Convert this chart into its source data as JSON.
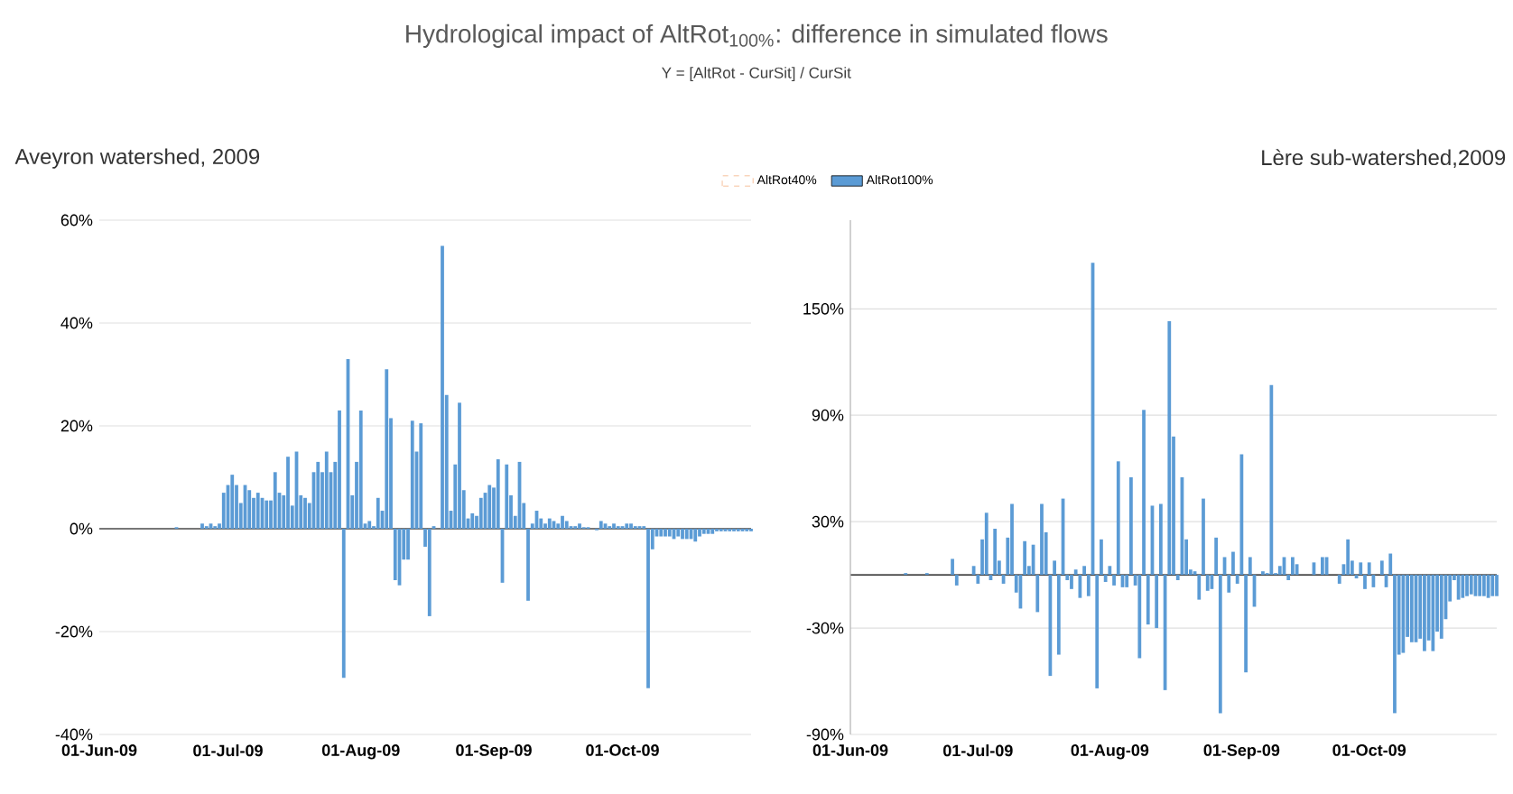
{
  "chart_data": [
    {
      "type": "bar",
      "title": "Hydrological impact of AltRot$_{100%}$: difference in simulated flows",
      "subtitle": "Y = [AltRot - CurSit] / CurSit",
      "annotations": [
        "Aveyron watershed, 2009"
      ],
      "x": [
        "2009-06-01",
        "2009-06-02",
        "2009-06-03",
        "2009-06-04",
        "2009-06-05",
        "2009-06-06",
        "2009-06-07",
        "2009-06-08",
        "2009-06-09",
        "2009-06-10",
        "2009-06-11",
        "2009-06-12",
        "2009-06-13",
        "2009-06-14",
        "2009-06-15",
        "2009-06-16",
        "2009-06-17",
        "2009-06-18",
        "2009-06-19",
        "2009-06-20",
        "2009-06-21",
        "2009-06-22",
        "2009-06-23",
        "2009-06-24",
        "2009-06-25",
        "2009-06-26",
        "2009-06-27",
        "2009-06-28",
        "2009-06-29",
        "2009-06-30",
        "2009-07-01",
        "2009-07-02",
        "2009-07-03",
        "2009-07-04",
        "2009-07-05",
        "2009-07-06",
        "2009-07-07",
        "2009-07-08",
        "2009-07-09",
        "2009-07-10",
        "2009-07-11",
        "2009-07-12",
        "2009-07-13",
        "2009-07-14",
        "2009-07-15",
        "2009-07-16",
        "2009-07-17",
        "2009-07-18",
        "2009-07-19",
        "2009-07-20",
        "2009-07-21",
        "2009-07-22",
        "2009-07-23",
        "2009-07-24",
        "2009-07-25",
        "2009-07-26",
        "2009-07-27",
        "2009-07-28",
        "2009-07-29",
        "2009-07-30",
        "2009-07-31",
        "2009-08-01",
        "2009-08-02",
        "2009-08-03",
        "2009-08-04",
        "2009-08-05",
        "2009-08-06",
        "2009-08-07",
        "2009-08-08",
        "2009-08-09",
        "2009-08-10",
        "2009-08-11",
        "2009-08-12",
        "2009-08-13",
        "2009-08-14",
        "2009-08-15",
        "2009-08-16",
        "2009-08-17",
        "2009-08-18",
        "2009-08-19",
        "2009-08-20",
        "2009-08-21",
        "2009-08-22",
        "2009-08-23",
        "2009-08-24",
        "2009-08-25",
        "2009-08-26",
        "2009-08-27",
        "2009-08-28",
        "2009-08-29",
        "2009-08-30",
        "2009-08-31",
        "2009-09-01",
        "2009-09-02",
        "2009-09-03",
        "2009-09-04",
        "2009-09-05",
        "2009-09-06",
        "2009-09-07",
        "2009-09-08",
        "2009-09-09",
        "2009-09-10",
        "2009-09-11",
        "2009-09-12",
        "2009-09-13",
        "2009-09-14",
        "2009-09-15",
        "2009-09-16",
        "2009-09-17",
        "2009-09-18",
        "2009-09-19",
        "2009-09-20",
        "2009-09-21",
        "2009-09-22",
        "2009-09-23",
        "2009-09-24",
        "2009-09-25",
        "2009-09-26",
        "2009-09-27",
        "2009-09-28",
        "2009-09-29",
        "2009-09-30",
        "2009-10-01",
        "2009-10-02",
        "2009-10-03",
        "2009-10-04",
        "2009-10-05",
        "2009-10-06",
        "2009-10-07",
        "2009-10-08",
        "2009-10-09",
        "2009-10-10",
        "2009-10-11",
        "2009-10-12",
        "2009-10-13",
        "2009-10-14",
        "2009-10-15",
        "2009-10-16",
        "2009-10-17",
        "2009-10-18",
        "2009-10-19",
        "2009-10-20",
        "2009-10-21",
        "2009-10-22",
        "2009-10-23",
        "2009-10-24",
        "2009-10-25",
        "2009-10-26",
        "2009-10-27",
        "2009-10-28",
        "2009-10-29",
        "2009-10-30",
        "2009-10-31"
      ],
      "series": [
        {
          "name": "AltRot40%",
          "color": "#f4b183",
          "line_style": "dashed",
          "values": [
            null,
            null,
            null,
            null,
            null,
            null,
            null,
            null,
            null,
            null,
            null,
            null,
            null,
            null,
            null,
            null,
            null,
            null,
            null,
            null,
            null,
            null,
            null,
            null,
            null,
            null,
            null,
            null,
            null,
            null,
            null,
            null,
            null,
            null,
            null,
            null,
            null,
            null,
            null,
            null,
            null,
            null,
            null,
            null,
            null,
            null,
            null,
            null,
            null,
            null,
            null,
            null,
            null,
            null,
            null,
            null,
            null,
            null,
            null,
            null,
            null,
            null,
            null,
            null,
            null,
            null,
            null,
            null,
            null,
            null,
            null,
            null,
            null,
            null,
            null,
            null,
            null,
            null,
            null,
            null,
            null,
            null,
            null,
            null,
            null,
            null,
            null,
            null,
            null,
            null,
            null,
            null,
            null,
            null,
            null,
            null,
            null,
            null,
            null,
            null,
            null,
            null,
            null,
            null,
            null,
            null,
            null,
            null,
            null,
            null,
            null,
            null,
            null,
            null,
            null,
            null,
            null,
            null,
            null,
            null,
            null,
            null,
            null,
            null,
            null,
            null,
            null,
            null,
            null,
            null,
            null,
            null,
            null,
            null,
            null,
            null,
            null,
            null,
            null,
            null,
            null,
            null,
            null,
            null,
            null,
            null,
            null,
            null,
            null,
            null,
            null,
            null,
            null
          ]
        },
        {
          "name": "AltRot100%",
          "color": "#5b9bd5",
          "values": [
            0,
            0,
            0,
            0,
            0,
            0,
            0,
            0,
            0,
            0,
            0,
            0,
            0,
            0,
            0,
            0,
            0,
            0,
            0.3,
            0,
            0,
            0,
            0,
            0,
            1,
            0.5,
            1,
            0.5,
            1,
            7,
            8.5,
            10.5,
            8.5,
            5,
            8.5,
            7.5,
            6,
            7,
            6,
            5.5,
            5.5,
            11,
            7,
            6.5,
            14,
            4.5,
            15,
            6.5,
            6,
            5,
            11,
            13,
            11,
            15,
            11,
            13,
            23,
            -29,
            33,
            6.5,
            13,
            23,
            1,
            1.5,
            0.5,
            6,
            3.5,
            31,
            21.5,
            -10,
            -11,
            -6,
            -6,
            21,
            15,
            20.5,
            -3.5,
            -17,
            0.5,
            0,
            55,
            26,
            3.5,
            12.5,
            24.5,
            7.5,
            2,
            3,
            2.5,
            6,
            7,
            8.5,
            8,
            13.5,
            -10.5,
            12.5,
            6.5,
            2.5,
            13,
            5,
            -14,
            1,
            3.5,
            2,
            1,
            2,
            1.5,
            1,
            2.5,
            1.5,
            0.5,
            0.5,
            1,
            0.3,
            0.3,
            0,
            -0.3,
            1.5,
            1,
            0.5,
            1,
            0.5,
            0.5,
            1,
            1,
            0.5,
            0.5,
            0.5,
            -31,
            -4,
            -1.5,
            -1.5,
            -1.5,
            -1.5,
            -2,
            -1.5,
            -2,
            -2,
            -2,
            -2.5,
            -1.5,
            -1,
            -1,
            -1,
            -0.5,
            -0.5,
            -0.5,
            -0.5,
            -0.5,
            -0.5,
            -0.5,
            -0.5,
            -0.5
          ]
        }
      ],
      "xlim": [
        "2009-06-01",
        "2009-10-31"
      ],
      "xticks": [
        {
          "value": "2009-06-01",
          "label": "01-Jun-09"
        },
        {
          "value": "2009-07-01",
          "label": "01-Jul-09"
        },
        {
          "value": "2009-08-01",
          "label": "01-Aug-09"
        },
        {
          "value": "2009-09-01",
          "label": "01-Sep-09"
        },
        {
          "value": "2009-10-01",
          "label": "01-Oct-09"
        }
      ],
      "ylim": [
        -40,
        60
      ],
      "yticks": [
        {
          "value": -40,
          "label": "-40%"
        },
        {
          "value": -20,
          "label": "-20%"
        },
        {
          "value": 0,
          "label": "0%"
        },
        {
          "value": 20,
          "label": "20%"
        },
        {
          "value": 40,
          "label": "40%"
        },
        {
          "value": 60,
          "label": "60%"
        }
      ],
      "grid": "y",
      "legend": "top right"
    },
    {
      "type": "bar",
      "annotations": [
        "Lère sub-watershed,2009"
      ],
      "x": [
        "2009-06-01",
        "2009-06-02",
        "2009-06-03",
        "2009-06-04",
        "2009-06-05",
        "2009-06-06",
        "2009-06-07",
        "2009-06-08",
        "2009-06-09",
        "2009-06-10",
        "2009-06-11",
        "2009-06-12",
        "2009-06-13",
        "2009-06-14",
        "2009-06-15",
        "2009-06-16",
        "2009-06-17",
        "2009-06-18",
        "2009-06-19",
        "2009-06-20",
        "2009-06-21",
        "2009-06-22",
        "2009-06-23",
        "2009-06-24",
        "2009-06-25",
        "2009-06-26",
        "2009-06-27",
        "2009-06-28",
        "2009-06-29",
        "2009-06-30",
        "2009-07-01",
        "2009-07-02",
        "2009-07-03",
        "2009-07-04",
        "2009-07-05",
        "2009-07-06",
        "2009-07-07",
        "2009-07-08",
        "2009-07-09",
        "2009-07-10",
        "2009-07-11",
        "2009-07-12",
        "2009-07-13",
        "2009-07-14",
        "2009-07-15",
        "2009-07-16",
        "2009-07-17",
        "2009-07-18",
        "2009-07-19",
        "2009-07-20",
        "2009-07-21",
        "2009-07-22",
        "2009-07-23",
        "2009-07-24",
        "2009-07-25",
        "2009-07-26",
        "2009-07-27",
        "2009-07-28",
        "2009-07-29",
        "2009-07-30",
        "2009-07-31",
        "2009-08-01",
        "2009-08-02",
        "2009-08-03",
        "2009-08-04",
        "2009-08-05",
        "2009-08-06",
        "2009-08-07",
        "2009-08-08",
        "2009-08-09",
        "2009-08-10",
        "2009-08-11",
        "2009-08-12",
        "2009-08-13",
        "2009-08-14",
        "2009-08-15",
        "2009-08-16",
        "2009-08-17",
        "2009-08-18",
        "2009-08-19",
        "2009-08-20",
        "2009-08-21",
        "2009-08-22",
        "2009-08-23",
        "2009-08-24",
        "2009-08-25",
        "2009-08-26",
        "2009-08-27",
        "2009-08-28",
        "2009-08-29",
        "2009-08-30",
        "2009-08-31",
        "2009-09-01",
        "2009-09-02",
        "2009-09-03",
        "2009-09-04",
        "2009-09-05",
        "2009-09-06",
        "2009-09-07",
        "2009-09-08",
        "2009-09-09",
        "2009-09-10",
        "2009-09-11",
        "2009-09-12",
        "2009-09-13",
        "2009-09-14",
        "2009-09-15",
        "2009-09-16",
        "2009-09-17",
        "2009-09-18",
        "2009-09-19",
        "2009-09-20",
        "2009-09-21",
        "2009-09-22",
        "2009-09-23",
        "2009-09-24",
        "2009-09-25",
        "2009-09-26",
        "2009-09-27",
        "2009-09-28",
        "2009-09-29",
        "2009-09-30",
        "2009-10-01",
        "2009-10-02",
        "2009-10-03",
        "2009-10-04",
        "2009-10-05",
        "2009-10-06",
        "2009-10-07",
        "2009-10-08",
        "2009-10-09",
        "2009-10-10",
        "2009-10-11",
        "2009-10-12",
        "2009-10-13",
        "2009-10-14",
        "2009-10-15",
        "2009-10-16",
        "2009-10-17",
        "2009-10-18",
        "2009-10-19",
        "2009-10-20",
        "2009-10-21",
        "2009-10-22",
        "2009-10-23",
        "2009-10-24",
        "2009-10-25",
        "2009-10-26",
        "2009-10-27",
        "2009-10-28",
        "2009-10-29",
        "2009-10-30",
        "2009-10-31"
      ],
      "series": [
        {
          "color": "#5b9bd5",
          "values": [
            0,
            0,
            0,
            0,
            0,
            0,
            0,
            0,
            0,
            0,
            0,
            0,
            0,
            1,
            0,
            0,
            0,
            0,
            1,
            0,
            0,
            0,
            0,
            0,
            9,
            -6,
            0,
            0,
            0,
            5,
            -5,
            20,
            35,
            -3,
            26,
            8,
            -5,
            21,
            40,
            -10,
            -19,
            19,
            5,
            17,
            -21,
            40,
            24,
            -57,
            8,
            -45,
            43,
            -3,
            -8,
            3,
            -13,
            5,
            -12,
            176,
            -64,
            20,
            -4,
            5,
            -6,
            64,
            -7,
            -7,
            55,
            -6,
            -47,
            93,
            -28,
            39,
            -30,
            40,
            -65,
            143,
            78,
            -3,
            55,
            20,
            3,
            2,
            -14,
            43,
            -9,
            -8,
            21,
            -78,
            10,
            -10,
            13,
            -5,
            68,
            -55,
            10,
            -18,
            0,
            2,
            1,
            107,
            1,
            5,
            10,
            -3,
            10,
            6,
            0,
            0,
            0,
            7,
            0,
            10,
            10,
            0,
            0,
            -5,
            6,
            20,
            8,
            -2,
            7,
            -8,
            7,
            -7,
            0,
            8,
            -7,
            12,
            -78,
            -45,
            -44,
            -35,
            -38,
            -38,
            -36,
            -43,
            -37,
            -43,
            -32,
            -36,
            -25,
            -15,
            -3,
            -14,
            -13,
            -12,
            -11,
            -12,
            -12,
            -12,
            -13,
            -12,
            -12
          ]
        }
      ],
      "xlim": [
        "2009-06-01",
        "2009-10-31"
      ],
      "xticks": [
        {
          "value": "2009-06-01",
          "label": "01-Jun-09"
        },
        {
          "value": "2009-07-01",
          "label": "01-Jul-09"
        },
        {
          "value": "2009-08-01",
          "label": "01-Aug-09"
        },
        {
          "value": "2009-09-01",
          "label": "01-Sep-09"
        },
        {
          "value": "2009-10-01",
          "label": "01-Oct-09"
        }
      ],
      "ylim": [
        -90,
        200
      ],
      "yticks": [
        {
          "value": -90,
          "label": "-90%"
        },
        {
          "value": -30,
          "label": "-30%"
        },
        {
          "value": 30,
          "label": "30%"
        },
        {
          "value": 90,
          "label": "90%"
        },
        {
          "value": 150,
          "label": "150%"
        }
      ],
      "grid": "y"
    }
  ]
}
